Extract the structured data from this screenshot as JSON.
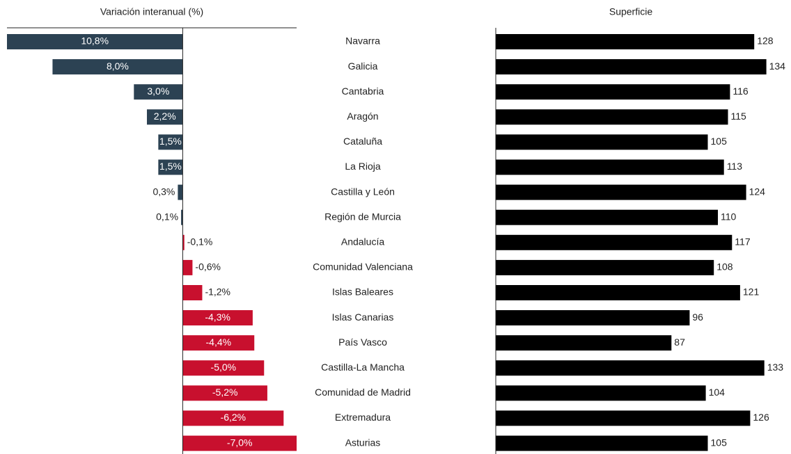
{
  "chart_data": [
    {
      "type": "bar",
      "orientation": "horizontal",
      "title": "Variación interanual (%)",
      "categories": [
        "Navarra",
        "Galicia",
        "Cantabria",
        "Aragón",
        "Cataluña",
        "La Rioja",
        "Castilla y León",
        "Región de Murcia",
        "Andalucía",
        "Comunidad Valenciana",
        "Islas Baleares",
        "Islas Canarias",
        "País Vasco",
        "Castilla-La Mancha",
        "Comunidad de Madrid",
        "Extremadura",
        "Asturias"
      ],
      "values": [
        10.8,
        8.0,
        3.0,
        2.2,
        1.5,
        1.5,
        0.3,
        0.1,
        -0.1,
        -0.6,
        -1.2,
        -4.3,
        -4.4,
        -5.0,
        -5.2,
        -6.2,
        -7.0
      ],
      "value_labels": [
        "10,8%",
        "8,0%",
        "3,0%",
        "2,2%",
        "1,5%",
        "1,5%",
        "0,3%",
        "0,1%",
        "-0,1%",
        "-0,6%",
        "-1,2%",
        "-4,3%",
        "-4,4%",
        "-5,0%",
        "-5,2%",
        "-6,2%",
        "-7,0%"
      ],
      "positive_color": "#2c4253",
      "negative_color": "#c8102e",
      "xlim": [
        -7.0,
        10.8
      ],
      "x_inverted": true
    },
    {
      "type": "bar",
      "orientation": "horizontal",
      "title": "Superficie",
      "values": [
        128,
        134,
        116,
        115,
        105,
        113,
        124,
        110,
        117,
        108,
        121,
        96,
        87,
        133,
        104,
        126,
        105
      ],
      "color": "#000000",
      "xlim": [
        0,
        140
      ]
    }
  ]
}
